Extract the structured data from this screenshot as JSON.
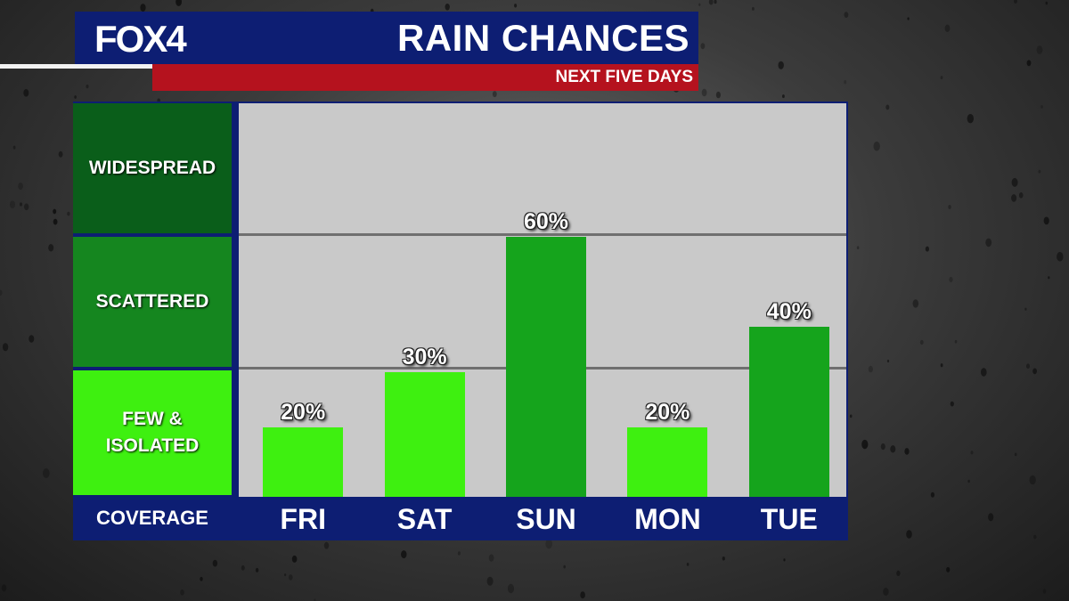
{
  "header": {
    "logo": "FOX4",
    "title": "RAIN CHANCES",
    "subtitle": "NEXT FIVE DAYS"
  },
  "colors": {
    "navy": "#0d1e73",
    "red": "#b5121e",
    "widespread_green": "#0a5e1a",
    "scattered_green": "#15861f",
    "few_green": "#3ef010",
    "plot_background": "#c9c9c9"
  },
  "chart_data": {
    "type": "bar",
    "title": "RAIN CHANCES",
    "subtitle": "NEXT FIVE DAYS",
    "xlabel": "COVERAGE",
    "categories": [
      "FRI",
      "SAT",
      "SUN",
      "MON",
      "TUE"
    ],
    "values": [
      20,
      30,
      60,
      20,
      40
    ],
    "value_labels": [
      "20%",
      "30%",
      "60%",
      "20%",
      "40%"
    ],
    "value_scale": "coverage bands",
    "bands": [
      {
        "label": "WIDESPREAD",
        "color": "#0a5e1a"
      },
      {
        "label": "SCATTERED",
        "color": "#15861f"
      },
      {
        "label": "FEW & ISOLATED",
        "lines": [
          "FEW &",
          "ISOLATED"
        ],
        "color": "#3ef010"
      }
    ],
    "bar_colors": [
      "#3ef010",
      "#3ef010",
      "#15a41c",
      "#3ef010",
      "#15a41c"
    ],
    "grid": true,
    "legend": "none"
  }
}
